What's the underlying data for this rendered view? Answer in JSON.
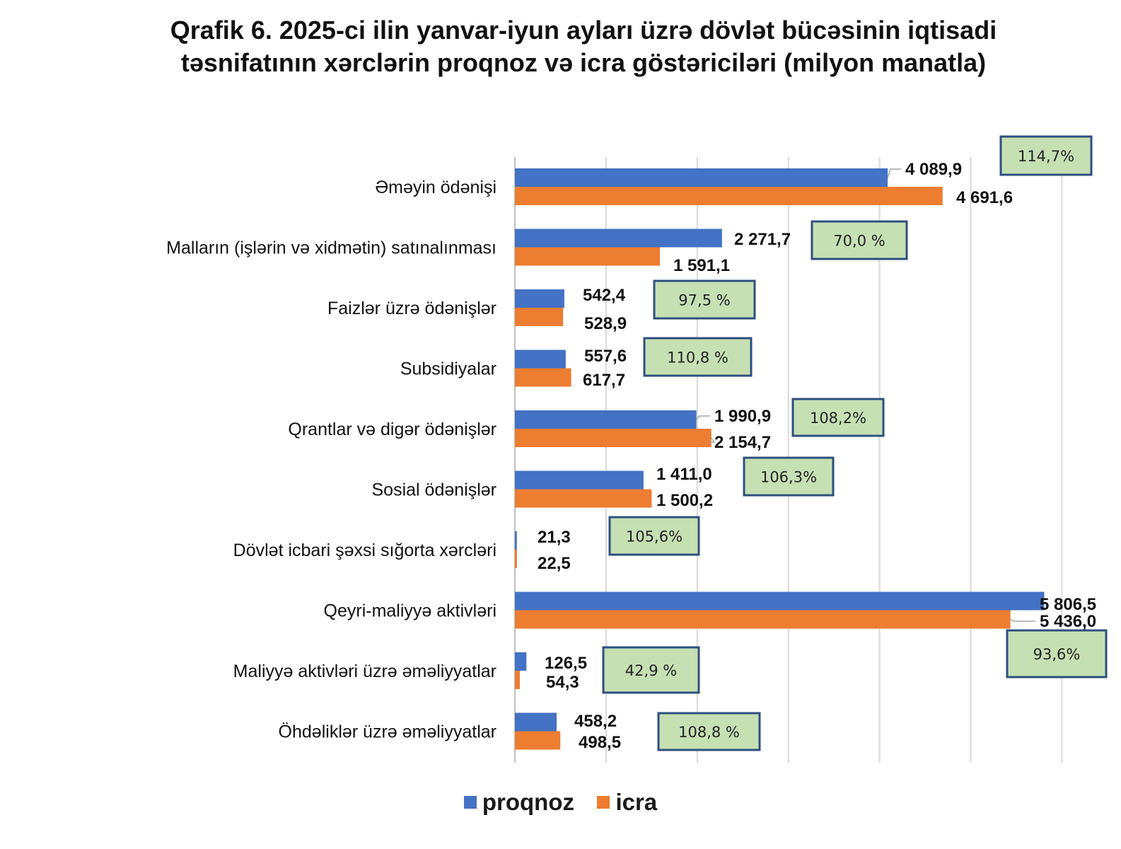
{
  "chart_data": {
    "type": "bar",
    "orientation": "horizontal",
    "title": "Qrafik 6. 2025-ci ilin yanvar-iyun ayları üzrə dövlət bücəsinin iqtisadi təsnifatının xərclərin proqnoz və icra göstəriciləri (milyon manatla)",
    "categories": [
      "Əməyin ödənişi",
      "Malların (işlərin və xidmətin) satınalınması",
      "Faizlər üzrə ödənişlər",
      "Subsidiyalar",
      "Qrantlar və digər ödənişlər",
      "Sosial ödənişlər",
      "Dövlət icbari şəxsi sığorta xərcləri",
      "Qeyri-maliyyə aktivləri",
      "Maliyyə aktivləri üzrə əməliyyatlar",
      "Öhdəliklər üzrə əməliyyatlar"
    ],
    "series": [
      {
        "name": "proqnoz",
        "color": "#4472C4",
        "values": [
          4089.9,
          2271.7,
          542.4,
          557.6,
          1990.9,
          1411.0,
          21.3,
          5806.5,
          126.5,
          458.2
        ],
        "labels": [
          "4 089,9",
          "2 271,7",
          "542,4",
          "557,6",
          "1 990,9",
          "1 411,0",
          "21,3",
          "5 806,5",
          "126,5",
          "458,2"
        ]
      },
      {
        "name": "icra",
        "color": "#ED7D31",
        "values": [
          4691.6,
          1591.1,
          528.9,
          617.7,
          2154.7,
          1500.2,
          22.5,
          5436.0,
          54.3,
          498.5
        ],
        "labels": [
          "4 691,6",
          "1 591,1",
          "528,9",
          "617,7",
          "2 154,7",
          "1 500,2",
          "22,5",
          "5 436,0",
          "54,3",
          "498,5"
        ]
      }
    ],
    "execution_percent": [
      "114,7%",
      "70,0 %",
      "97,5 %",
      "110,8 %",
      "108,2%",
      "106,3%",
      "105,6%",
      "93,6%",
      "42,9 %",
      "108,8 %"
    ],
    "percent_box_style": {
      "fill": "#C6E0B4",
      "border": "#2F4F7F"
    },
    "xlim": [
      0,
      6000
    ],
    "grid": true,
    "legend": "bottom"
  }
}
